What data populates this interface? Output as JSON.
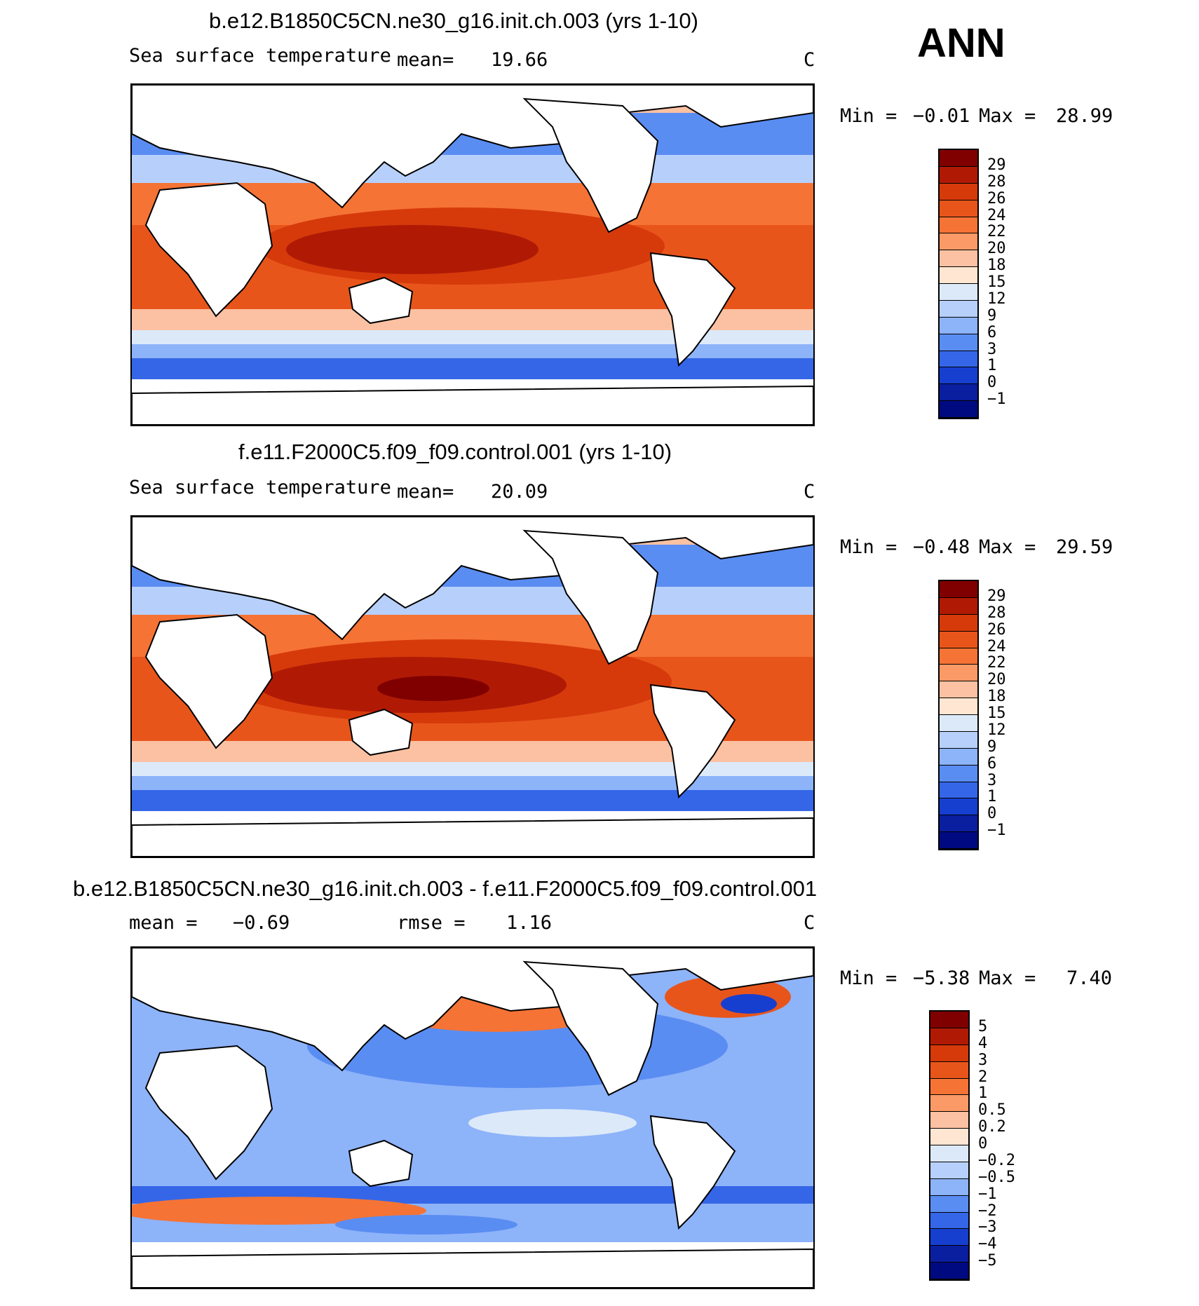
{
  "season": "ANN",
  "units": "C",
  "panels": [
    {
      "title": "b.e12.B1850C5CN.ne30_g16.init.ch.003 (yrs 1-10)",
      "variable": "Sea surface temperature",
      "mean_label": "mean=",
      "mean": "19.66",
      "min_label": "Min =",
      "min": "−0.01",
      "max_label": "Max =",
      "max": "28.99"
    },
    {
      "title": "f.e11.F2000C5.f09_f09.control.001 (yrs 1-10)",
      "variable": "Sea surface temperature",
      "mean_label": "mean=",
      "mean": "20.09",
      "min_label": "Min =",
      "min": "−0.48",
      "max_label": "Max =",
      "max": "29.59"
    },
    {
      "title": "b.e12.B1850C5CN.ne30_g16.init.ch.003 - f.e11.F2000C5.f09_f09.control.001",
      "mean_label": "mean =",
      "mean": "−0.69",
      "rmse_label": "rmse =",
      "rmse": "1.16",
      "min_label": "Min =",
      "min": "−5.38",
      "max_label": "Max =",
      "max": "7.40"
    }
  ],
  "chart_data": {
    "type": "heatmap",
    "colorbars": [
      {
        "levels": [
          "29",
          "28",
          "26",
          "24",
          "22",
          "20",
          "18",
          "15",
          "12",
          "9",
          "6",
          "3",
          "1",
          "0",
          "−1"
        ],
        "colors": [
          "#800000",
          "#b01a05",
          "#d63a0b",
          "#e8551b",
          "#f57335",
          "#fb9a67",
          "#fcc1a3",
          "#fee6d2",
          "#dce9f9",
          "#b7d0fb",
          "#8db3f9",
          "#5a8df2",
          "#3566e8",
          "#163fd0",
          "#0a1ea0",
          "#000a80"
        ]
      },
      {
        "levels": [
          "5",
          "4",
          "3",
          "2",
          "1",
          "0.5",
          "0.2",
          "0",
          "−0.2",
          "−0.5",
          "−1",
          "−2",
          "−3",
          "−4",
          "−5"
        ],
        "colors": [
          "#800000",
          "#b01a05",
          "#d63a0b",
          "#e8551b",
          "#f57335",
          "#fb9a67",
          "#fcc1a3",
          "#fee6d2",
          "#dce9f9",
          "#b7d0fb",
          "#8db3f9",
          "#5a8df2",
          "#3566e8",
          "#163fd0",
          "#0a1ea0",
          "#000a80"
        ]
      }
    ]
  }
}
